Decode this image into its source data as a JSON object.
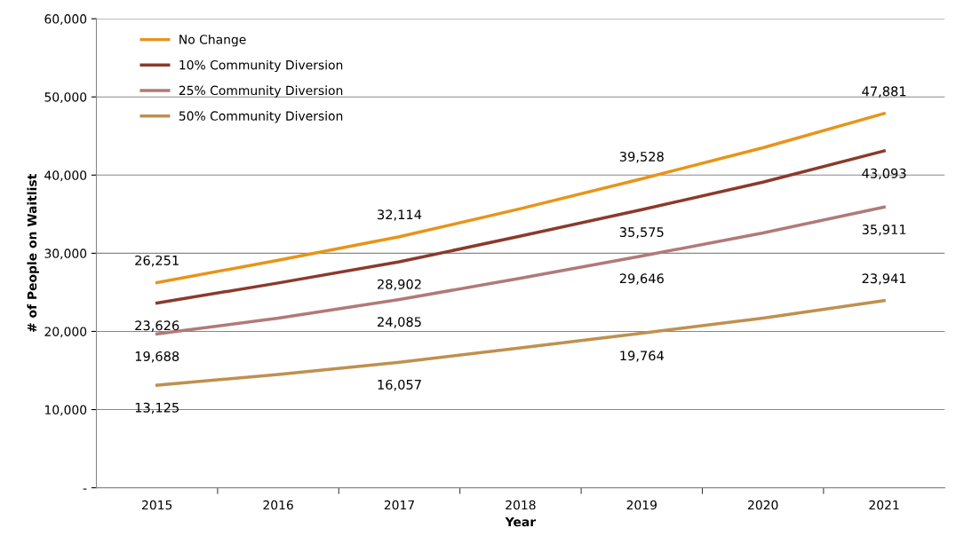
{
  "chart_data": {
    "type": "line",
    "xlabel": "Year",
    "ylabel": "# of People on Waitlist",
    "categories": [
      "2015",
      "2016",
      "2017",
      "2018",
      "2019",
      "2020",
      "2021"
    ],
    "series": [
      {
        "name": "No Change",
        "color": "#e8941a",
        "values": [
          26251,
          29100,
          32114,
          35700,
          39528,
          43500,
          47881
        ],
        "value_labels": [
          "26,251",
          null,
          "32,114",
          null,
          "39,528",
          null,
          "47,881"
        ]
      },
      {
        "name": "10% Community Diversion",
        "color": "#8b3a2a",
        "values": [
          23626,
          26200,
          28902,
          32200,
          35575,
          39100,
          43093
        ],
        "value_labels": [
          "23,626",
          null,
          "28,902",
          null,
          "35,575",
          null,
          "43,093"
        ]
      },
      {
        "name": "25% Community Diversion",
        "color": "#b07a78",
        "values": [
          19688,
          21700,
          24085,
          26800,
          29646,
          32600,
          35911
        ],
        "value_labels": [
          "19,688",
          null,
          "24,085",
          null,
          "29,646",
          null,
          "35,911"
        ]
      },
      {
        "name": "50% Community Diversion",
        "color": "#c0904f",
        "values": [
          13125,
          14500,
          16057,
          17900,
          19764,
          21700,
          23941
        ],
        "value_labels": [
          "13,125",
          null,
          "16,057",
          null,
          "19,764",
          null,
          "23,941"
        ]
      }
    ],
    "ylim": [
      0,
      60000
    ],
    "yticks": [
      {
        "value": 0,
        "label": "-"
      },
      {
        "value": 10000,
        "label": "10,000"
      },
      {
        "value": 20000,
        "label": "20,000"
      },
      {
        "value": 30000,
        "label": "30,000"
      },
      {
        "value": 40000,
        "label": "40,000"
      },
      {
        "value": 50000,
        "label": "50,000"
      },
      {
        "value": 60000,
        "label": "60,000"
      }
    ],
    "grid": "y",
    "legend": "top left",
    "marker": "none",
    "line_style": "solid"
  }
}
